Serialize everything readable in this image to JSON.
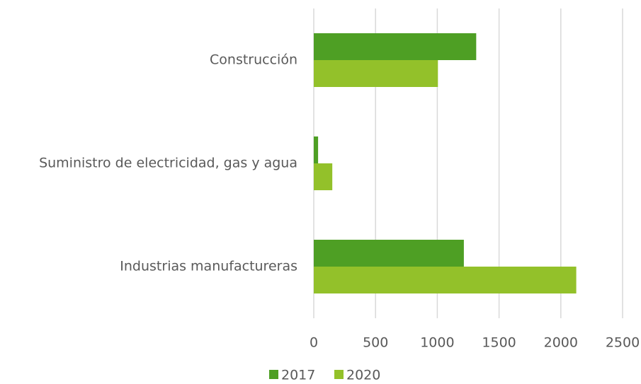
{
  "chart_data": {
    "type": "barh",
    "categories": [
      "Construcción",
      "Suministro de electricidad, gas y agua",
      "Industrias manufactureras"
    ],
    "series": [
      {
        "name": "2017",
        "color": "#4e9f24",
        "values": [
          1315,
          35,
          1215
        ]
      },
      {
        "name": "2020",
        "color": "#93c12a",
        "values": [
          1005,
          150,
          2125
        ]
      }
    ],
    "xlim": [
      0,
      2500
    ],
    "xticks": [
      0,
      500,
      1000,
      1500,
      2000,
      2500
    ],
    "grid": true,
    "legend": "bottom"
  }
}
